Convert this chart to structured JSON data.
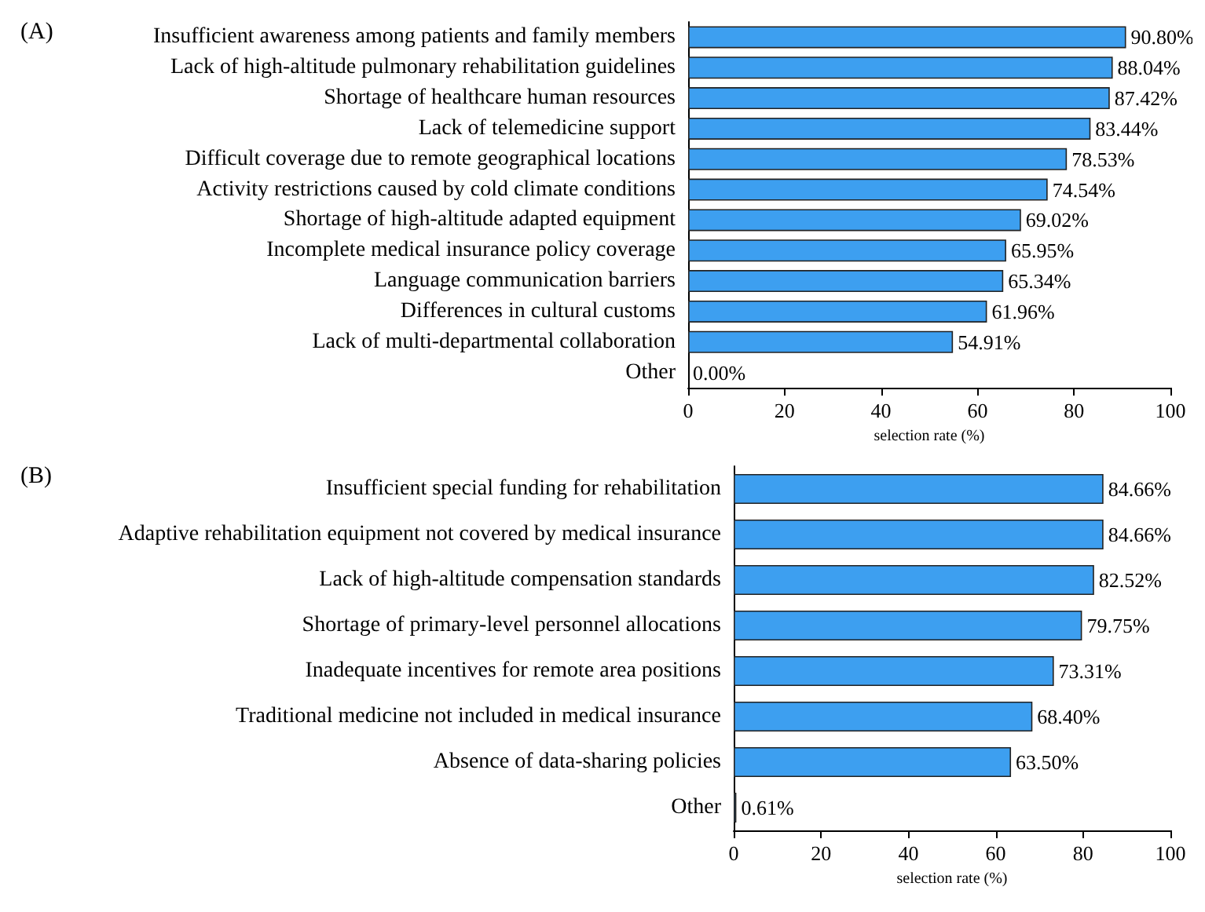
{
  "chart_data": [
    {
      "type": "bar",
      "title": "(A)",
      "orientation": "horizontal",
      "xlabel": "selection rate (%)",
      "categories": [
        "Insufficient awareness among patients and family members",
        "Lack of high-altitude pulmonary rehabilitation guidelines",
        "Shortage of healthcare human resources",
        "Lack of telemedicine support",
        "Difficult coverage due to remote geographical locations",
        "Activity restrictions caused by cold climate conditions",
        "Shortage of high-altitude adapted equipment",
        "Incomplete medical insurance policy coverage",
        "Language communication barriers",
        "Differences in cultural customs",
        "Lack of multi-departmental collaboration",
        "Other"
      ],
      "values": [
        90.8,
        88.04,
        87.42,
        83.44,
        78.53,
        74.54,
        69.02,
        65.95,
        65.34,
        61.96,
        54.91,
        0.0
      ],
      "value_labels": [
        "90.80%",
        "88.04%",
        "87.42%",
        "83.44%",
        "78.53%",
        "74.54%",
        "69.02%",
        "65.95%",
        "65.34%",
        "61.96%",
        "54.91%",
        "0.00%"
      ],
      "color": "#3d9ff0",
      "xlim": [
        0,
        100
      ],
      "xticks": [
        0,
        20,
        40,
        60,
        80,
        100
      ]
    },
    {
      "type": "bar",
      "title": "(B)",
      "orientation": "horizontal",
      "xlabel": "selection rate (%)",
      "categories": [
        "Insufficient special funding for rehabilitation",
        "Adaptive rehabilitation equipment not covered by medical insurance",
        "Lack of high-altitude compensation standards",
        "Shortage of primary-level personnel allocations",
        "Inadequate incentives for remote area positions",
        "Traditional medicine not included in medical insurance",
        "Absence of data-sharing policies",
        "Other"
      ],
      "values": [
        84.66,
        84.66,
        82.52,
        79.75,
        73.31,
        68.4,
        63.5,
        0.61
      ],
      "value_labels": [
        "84.66%",
        "84.66%",
        "82.52%",
        "79.75%",
        "73.31%",
        "68.40%",
        "63.50%",
        "0.61%"
      ],
      "color": "#3d9ff0",
      "xlim": [
        0,
        100
      ],
      "xticks": [
        0,
        20,
        40,
        60,
        80,
        100
      ]
    }
  ]
}
